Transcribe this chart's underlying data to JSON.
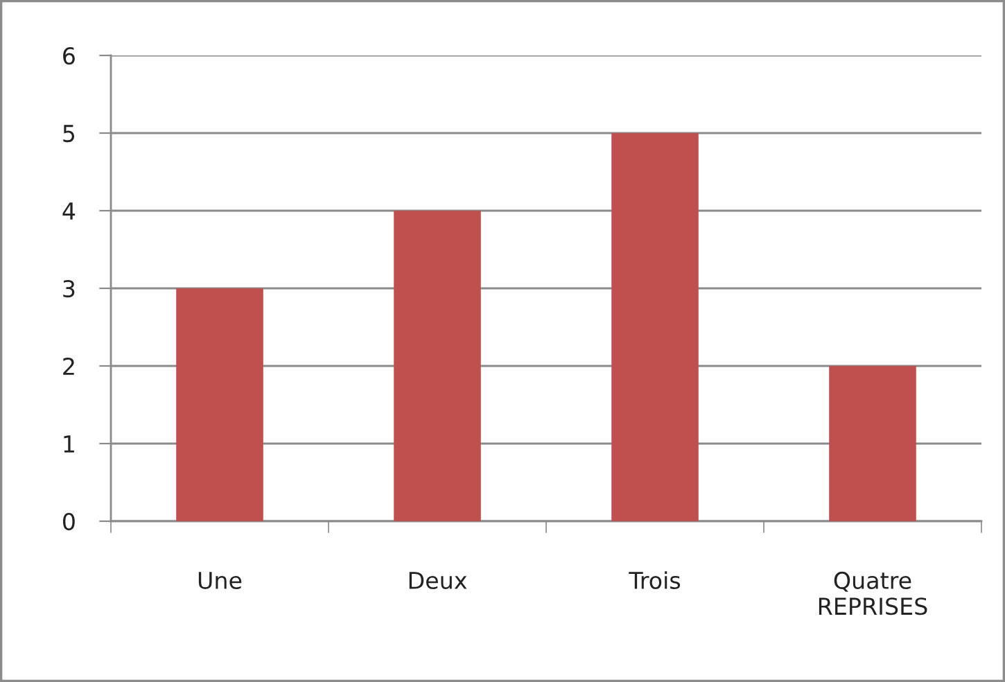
{
  "chart_data": {
    "type": "bar",
    "categories": [
      "Une",
      "Deux",
      "Trois",
      "Quatre\nREPRISES"
    ],
    "values": [
      3,
      4,
      5,
      2
    ],
    "color": "#c0504d",
    "ylim": [
      0,
      6
    ],
    "yticks": [
      0,
      1,
      2,
      3,
      4,
      5,
      6
    ],
    "grid": "y"
  }
}
